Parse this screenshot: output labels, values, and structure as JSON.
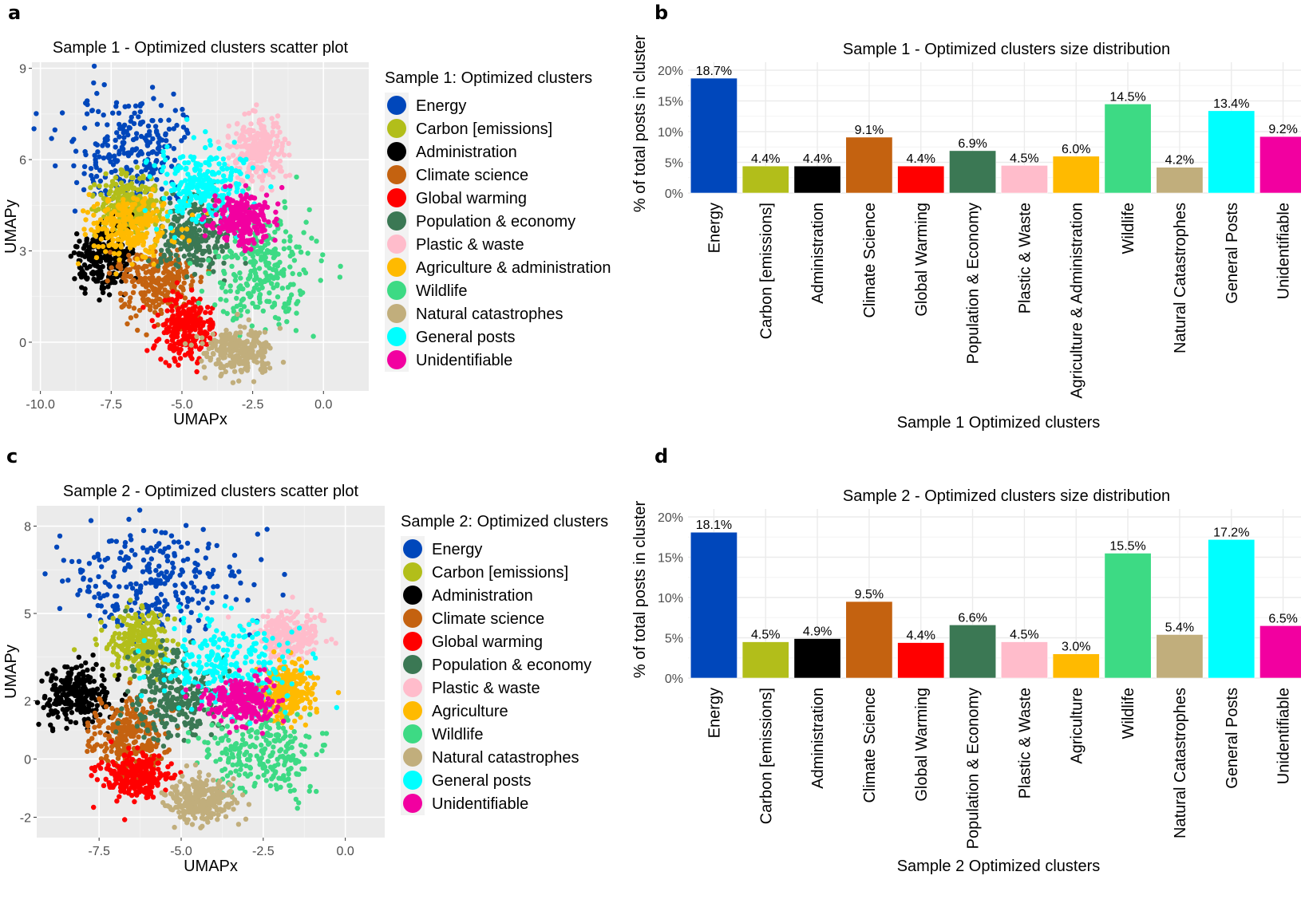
{
  "panels": {
    "a": "a",
    "b": "b",
    "c": "c",
    "d": "d"
  },
  "palette": {
    "Energy": "#0047BB",
    "Carbon": "#B2BE1A",
    "Administration": "#000000",
    "Climate": "#C46210",
    "Global": "#FF0000",
    "Population": "#3B7854",
    "Plastic": "#FFBCCB",
    "Agriculture": "#FFBA00",
    "Wildlife": "#3DDA84",
    "Natural": "#C1AE7C",
    "General": "#00FFFF",
    "Unidentifiable": "#F200A0"
  },
  "chart_data": [
    {
      "id": "a",
      "type": "scatter",
      "title": "Sample 1 - Optimized clusters scatter plot",
      "xlabel": "UMAPx",
      "ylabel": "UMAPy",
      "xlim": [
        -10.3,
        1.6
      ],
      "ylim": [
        -1.6,
        9.2
      ],
      "xticks": [
        "-10.0",
        "-7.5",
        "-5.0",
        "-2.5",
        "0.0"
      ],
      "xtick_values": [
        -10,
        -7.5,
        -5,
        -2.5,
        0
      ],
      "yticks": [
        "0",
        "3",
        "6",
        "9"
      ],
      "ytick_values": [
        0,
        3,
        6,
        9
      ],
      "grid": true,
      "legend_title": "Sample 1: Optimized clusters",
      "legend_position": "right",
      "legend": [
        "Energy",
        "Carbon [emissions]",
        "Administration",
        "Climate science",
        "Global warming",
        "Population & economy",
        "Plastic & waste",
        "Agriculture & administration",
        "Wildlife",
        "Natural catastrophes",
        "General posts",
        "Unidentifiable"
      ],
      "cluster_centers": [
        {
          "name": "Energy",
          "x": -6.8,
          "y": 6.3,
          "sx": 1.1,
          "sy": 1.0
        },
        {
          "name": "Carbon [emissions]",
          "x": -6.8,
          "y": 4.5,
          "sx": 0.6,
          "sy": 0.5
        },
        {
          "name": "Administration",
          "x": -7.8,
          "y": 2.8,
          "sx": 0.5,
          "sy": 0.5
        },
        {
          "name": "Climate science",
          "x": -5.8,
          "y": 1.9,
          "sx": 0.7,
          "sy": 0.6
        },
        {
          "name": "Global warming",
          "x": -4.9,
          "y": 0.5,
          "sx": 0.5,
          "sy": 0.5
        },
        {
          "name": "Population & economy",
          "x": -4.6,
          "y": 3.5,
          "sx": 0.7,
          "sy": 0.6
        },
        {
          "name": "Plastic & waste",
          "x": -2.3,
          "y": 6.3,
          "sx": 0.5,
          "sy": 0.5
        },
        {
          "name": "Agriculture & administration",
          "x": -6.8,
          "y": 3.8,
          "sx": 0.8,
          "sy": 0.5
        },
        {
          "name": "Wildlife",
          "x": -2.2,
          "y": 2.3,
          "sx": 0.9,
          "sy": 1.0
        },
        {
          "name": "Natural catastrophes",
          "x": -3.0,
          "y": -0.3,
          "sx": 0.6,
          "sy": 0.4
        },
        {
          "name": "General posts",
          "x": -4.2,
          "y": 5.2,
          "sx": 0.8,
          "sy": 0.7
        },
        {
          "name": "Unidentifiable",
          "x": -2.9,
          "y": 4.0,
          "sx": 0.5,
          "sy": 0.5
        }
      ]
    },
    {
      "id": "b",
      "type": "bar",
      "title": "Sample 1 - Optimized clusters size distribution",
      "xlabel": "Sample 1 Optimized clusters",
      "ylabel": "% of total posts in cluster",
      "ylim": [
        0,
        20
      ],
      "yticks": [
        "0%",
        "5%",
        "10%",
        "15%",
        "20%"
      ],
      "ytick_values": [
        0,
        5,
        10,
        15,
        20
      ],
      "grid": true,
      "categories": [
        "Energy",
        "Carbon [emissions]",
        "Administration",
        "Climate Science",
        "Global Warming",
        "Population & Economy",
        "Plastic & Waste",
        "Agriculture  & Administration",
        "Wildlife",
        "Natural Catastrophes",
        "General Posts",
        "Unidentifiable"
      ],
      "values": [
        18.7,
        4.4,
        4.4,
        9.1,
        4.4,
        6.9,
        4.5,
        6.0,
        14.5,
        4.2,
        13.4,
        9.2
      ],
      "labels": [
        "18.7%",
        "4.4%",
        "4.4%",
        "9.1%",
        "4.4%",
        "6.9%",
        "4.5%",
        "6.0%",
        "14.5%",
        "4.2%",
        "13.4%",
        "9.2%"
      ]
    },
    {
      "id": "c",
      "type": "scatter",
      "title": "Sample 2 - Optimized clusters scatter plot",
      "xlabel": "UMAPx",
      "ylabel": "UMAPy",
      "xlim": [
        -9.4,
        1.2
      ],
      "ylim": [
        -2.7,
        8.7
      ],
      "xticks": [
        "-7.5",
        "-5.0",
        "-2.5",
        "0.0"
      ],
      "xtick_values": [
        -7.5,
        -5,
        -2.5,
        0
      ],
      "yticks": [
        "-2",
        "0",
        "2",
        "5",
        "8"
      ],
      "ytick_values": [
        -2,
        0,
        2,
        5,
        8
      ],
      "grid": true,
      "legend_title": "Sample 2: Optimized clusters",
      "legend_position": "right",
      "legend": [
        "Energy",
        "Carbon [emissions]",
        "Administration",
        "Climate science",
        "Global warming",
        "Population & economy",
        "Plastic & waste",
        "Agriculture",
        "Wildlife",
        "Natural catastrophes",
        "General posts",
        "Unidentifiable"
      ],
      "cluster_centers": [
        {
          "name": "Energy",
          "x": -5.8,
          "y": 6.2,
          "sx": 1.3,
          "sy": 1.0
        },
        {
          "name": "Carbon [emissions]",
          "x": -6.3,
          "y": 4.0,
          "sx": 0.5,
          "sy": 0.5
        },
        {
          "name": "Administration",
          "x": -8.2,
          "y": 2.2,
          "sx": 0.5,
          "sy": 0.5
        },
        {
          "name": "Climate science",
          "x": -6.5,
          "y": 0.8,
          "sx": 0.6,
          "sy": 0.6
        },
        {
          "name": "Global warming",
          "x": -6.3,
          "y": -0.6,
          "sx": 0.5,
          "sy": 0.4
        },
        {
          "name": "Population & economy",
          "x": -5.2,
          "y": 2.2,
          "sx": 0.7,
          "sy": 0.8
        },
        {
          "name": "Plastic & waste",
          "x": -1.8,
          "y": 4.2,
          "sx": 0.5,
          "sy": 0.4
        },
        {
          "name": "Agriculture",
          "x": -1.8,
          "y": 2.3,
          "sx": 0.4,
          "sy": 0.5
        },
        {
          "name": "Wildlife",
          "x": -2.6,
          "y": 0.2,
          "sx": 0.9,
          "sy": 0.8
        },
        {
          "name": "Natural catastrophes",
          "x": -4.4,
          "y": -1.4,
          "sx": 0.5,
          "sy": 0.4
        },
        {
          "name": "General posts",
          "x": -3.7,
          "y": 3.3,
          "sx": 1.0,
          "sy": 0.8
        },
        {
          "name": "Unidentifiable",
          "x": -3.2,
          "y": 2.0,
          "sx": 0.5,
          "sy": 0.4
        }
      ]
    },
    {
      "id": "d",
      "type": "bar",
      "title": "Sample 2 - Optimized clusters size distribution",
      "xlabel": "Sample 2 Optimized clusters",
      "ylabel": "% of total posts in cluster",
      "ylim": [
        0,
        20
      ],
      "yticks": [
        "0%",
        "5%",
        "10%",
        "15%",
        "20%"
      ],
      "ytick_values": [
        0,
        5,
        10,
        15,
        20
      ],
      "grid": true,
      "categories": [
        "Energy",
        "Carbon [emissions]",
        "Administration",
        "Climate Science",
        "Global Warming",
        "Population & Economy",
        "Plastic & Waste",
        "Agriculture",
        "Wildlife",
        "Natural Catastrophes",
        "General Posts",
        "Unidentifiable"
      ],
      "values": [
        18.1,
        4.5,
        4.9,
        9.5,
        4.4,
        6.6,
        4.5,
        3.0,
        15.5,
        5.4,
        17.2,
        6.5
      ],
      "labels": [
        "18.1%",
        "4.5%",
        "4.9%",
        "9.5%",
        "4.4%",
        "6.6%",
        "4.5%",
        "3.0%",
        "15.5%",
        "5.4%",
        "17.2%",
        "6.5%"
      ]
    }
  ]
}
